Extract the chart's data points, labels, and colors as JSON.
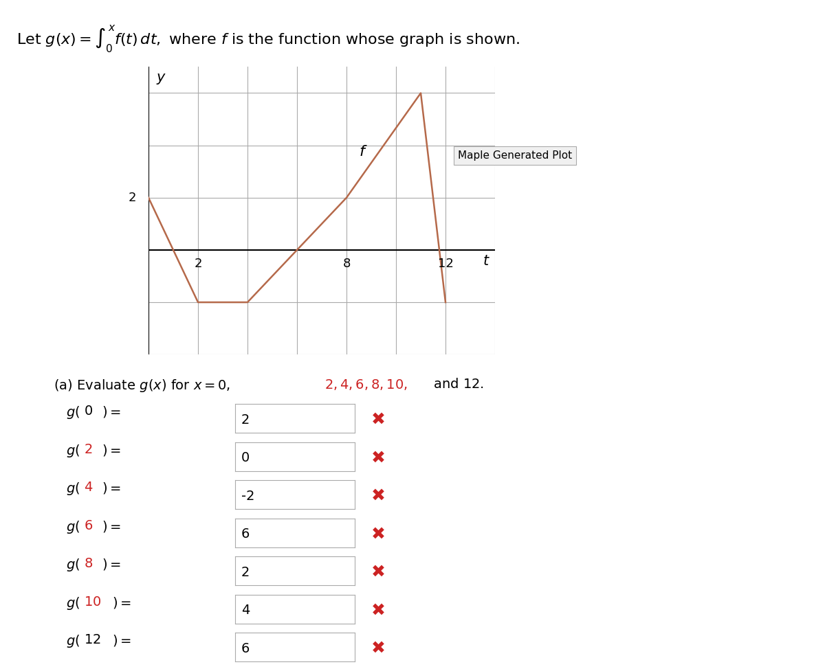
{
  "title_text": "Let $g(x) = \\int_0^x f(t)\\, dt,$ where $f$ is the function whose graph is shown.",
  "graph_title": "Maple Generated Plot",
  "f_label": "$f$",
  "xlabel": "$t$",
  "ylabel": "$y$",
  "f_points": [
    [
      0,
      2
    ],
    [
      2,
      -2
    ],
    [
      4,
      -2
    ],
    [
      8,
      2
    ],
    [
      11,
      6
    ],
    [
      12,
      -2
    ]
  ],
  "f_color": "#b5694a",
  "xlim": [
    0,
    14
  ],
  "ylim": [
    -4,
    7
  ],
  "xticks": [
    2,
    8,
    12
  ],
  "yticks": [
    2
  ],
  "grid_color": "#aaaaaa",
  "ax_section": "(a) Evaluate $g(x)$ for $x = 0, $ {red_part} and $12.$",
  "eval_label": "(a) Evaluate",
  "eval_x_values": [
    0,
    2,
    4,
    6,
    8,
    10,
    12
  ],
  "eval_g_values": [
    2,
    0,
    -2,
    6,
    2,
    4,
    6
  ],
  "red_x_values": [
    2,
    4,
    6,
    8,
    10
  ],
  "box_color": "#f0f0f0",
  "x_mark_color": "#cc2222",
  "bg_color": "#ffffff"
}
